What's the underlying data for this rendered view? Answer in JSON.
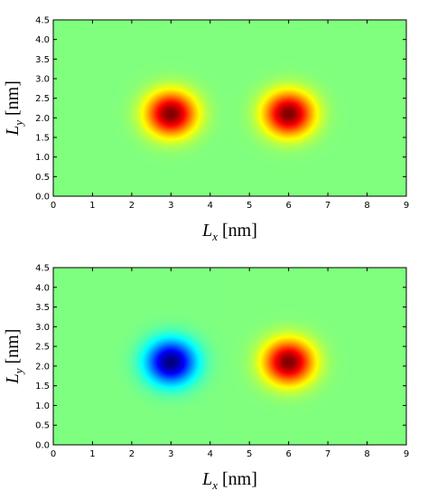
{
  "chart_data": [
    {
      "type": "heatmap",
      "title": "",
      "xlabel": "L_x [nm]",
      "ylabel": "L_y [nm]",
      "xlabel_parts": {
        "symbol": "L",
        "sub": "x",
        "unit": " [nm]"
      },
      "ylabel_parts": {
        "symbol": "L",
        "sub": "y",
        "unit": " [nm]"
      },
      "xlim": [
        0,
        9
      ],
      "ylim": [
        0,
        4.5
      ],
      "xticks": [
        "0",
        "1",
        "2",
        "3",
        "4",
        "5",
        "6",
        "7",
        "8",
        "9"
      ],
      "yticks": [
        "0.0",
        "0.5",
        "1.0",
        "1.5",
        "2.0",
        "2.5",
        "3.0",
        "3.5",
        "4.0",
        "4.5"
      ],
      "colormap": "jet",
      "color_range": [
        -1,
        1
      ],
      "grid": false,
      "peaks": [
        {
          "x": 3.0,
          "y": 2.1,
          "amplitude": 1.0
        },
        {
          "x": 6.0,
          "y": 2.1,
          "amplitude": 1.0
        }
      ]
    },
    {
      "type": "heatmap",
      "title": "",
      "xlabel": "L_x [nm]",
      "ylabel": "L_y [nm]",
      "xlabel_parts": {
        "symbol": "L",
        "sub": "x",
        "unit": " [nm]"
      },
      "ylabel_parts": {
        "symbol": "L",
        "sub": "y",
        "unit": " [nm]"
      },
      "xlim": [
        0,
        9
      ],
      "ylim": [
        0,
        4.5
      ],
      "xticks": [
        "0",
        "1",
        "2",
        "3",
        "4",
        "5",
        "6",
        "7",
        "8",
        "9"
      ],
      "yticks": [
        "0.0",
        "0.5",
        "1.0",
        "1.5",
        "2.0",
        "2.5",
        "3.0",
        "3.5",
        "4.0",
        "4.5"
      ],
      "colormap": "jet",
      "color_range": [
        -1,
        1
      ],
      "grid": false,
      "peaks": [
        {
          "x": 3.0,
          "y": 2.1,
          "amplitude": -1.0
        },
        {
          "x": 6.0,
          "y": 2.1,
          "amplitude": 1.0
        }
      ]
    }
  ]
}
